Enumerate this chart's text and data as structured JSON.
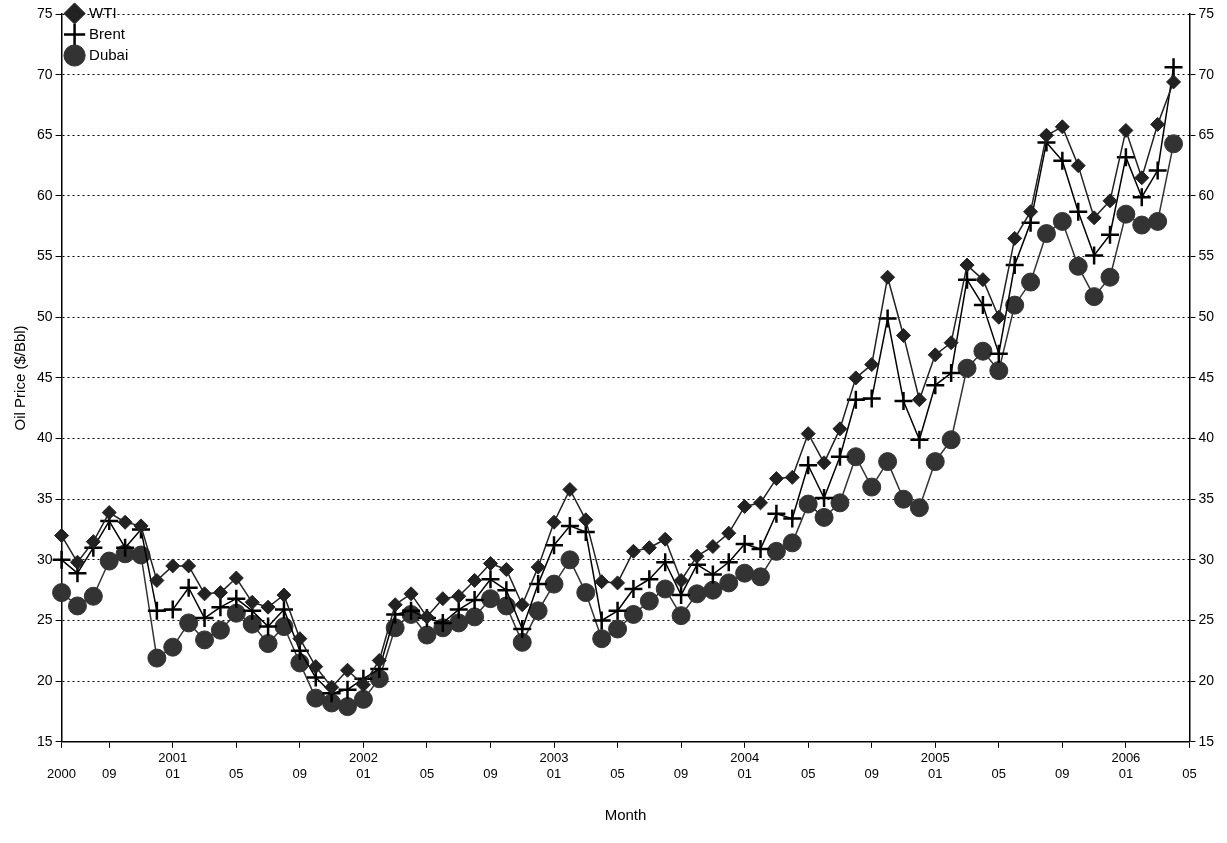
{
  "chart_data": {
    "type": "line",
    "xlabel": "Month",
    "ylabel": "Oil Price ($/Bbl)",
    "categories": [
      "2000",
      null,
      null,
      "09",
      null,
      null,
      null,
      "2001\n01",
      null,
      null,
      null,
      "05",
      null,
      null,
      null,
      "09",
      null,
      null,
      null,
      "2002\n01",
      null,
      null,
      null,
      "05",
      null,
      null,
      null,
      "09",
      null,
      null,
      null,
      "2003\n01",
      null,
      null,
      null,
      "05",
      null,
      null,
      null,
      "09",
      null,
      null,
      null,
      "2004\n01",
      null,
      null,
      null,
      "05",
      null,
      null,
      null,
      "09",
      null,
      null,
      null,
      "2005\n01",
      null,
      null,
      null,
      "05",
      null,
      null,
      null,
      "09",
      null,
      null,
      null,
      "2006\n01",
      null,
      null,
      null,
      "05"
    ],
    "series": [
      {
        "name": "WTI",
        "color": "#222222",
        "marker": "diamond",
        "values": [
          32.0,
          29.8,
          31.5,
          33.9,
          33.1,
          32.8,
          28.3,
          29.5,
          29.5,
          27.2,
          27.3,
          28.5,
          26.5,
          26.1,
          27.1,
          23.5,
          21.2,
          19.5,
          20.9,
          19.7,
          21.7,
          26.3,
          27.2,
          25.3,
          26.8,
          27.0,
          28.3,
          29.7,
          29.2,
          26.3,
          29.4,
          33.1,
          35.8,
          33.3,
          28.2,
          28.1,
          30.7,
          31.0,
          31.7,
          28.3,
          30.3,
          31.1,
          32.2,
          34.4,
          34.7,
          36.7,
          36.8,
          40.4,
          38.0,
          40.8,
          45.0,
          46.1,
          53.3,
          48.5,
          43.2,
          46.9,
          47.9,
          54.3,
          53.1,
          50.0,
          56.5,
          58.7,
          65.0,
          65.7,
          62.5,
          58.2,
          59.6,
          65.4,
          61.5,
          65.9,
          69.4,
          null
        ]
      },
      {
        "name": "Brent",
        "color": "#000000",
        "marker": "cross",
        "values": [
          30.0,
          28.9,
          31.0,
          33.2,
          31.0,
          32.5,
          25.8,
          25.9,
          27.7,
          25.2,
          26.1,
          26.8,
          25.8,
          24.5,
          25.9,
          22.5,
          20.3,
          19.0,
          19.3,
          20.2,
          21.0,
          25.5,
          25.8,
          25.2,
          24.8,
          25.9,
          26.7,
          28.4,
          27.5,
          24.3,
          28.0,
          31.2,
          32.8,
          32.3,
          25.0,
          25.8,
          27.6,
          28.4,
          29.8,
          27.1,
          29.6,
          28.8,
          29.8,
          31.3,
          30.9,
          33.8,
          33.4,
          37.8,
          35.1,
          38.5,
          43.2,
          43.3,
          49.9,
          43.1,
          39.9,
          44.4,
          45.4,
          53.1,
          51.0,
          47.0,
          54.3,
          57.8,
          64.4,
          62.9,
          58.7,
          55.1,
          56.8,
          63.2,
          59.9,
          62.1,
          70.6,
          null
        ]
      },
      {
        "name": "Dubai",
        "color": "#333333",
        "marker": "circle",
        "values": [
          27.3,
          26.2,
          27.0,
          29.9,
          30.5,
          30.4,
          21.9,
          22.8,
          24.8,
          23.4,
          24.2,
          25.6,
          24.7,
          23.1,
          24.5,
          21.5,
          18.6,
          18.2,
          17.9,
          18.5,
          20.2,
          24.4,
          25.5,
          23.8,
          24.4,
          24.8,
          25.3,
          26.8,
          26.2,
          23.2,
          25.8,
          28.0,
          30.0,
          27.3,
          23.5,
          24.3,
          25.5,
          26.6,
          27.6,
          25.4,
          27.2,
          27.5,
          28.1,
          28.9,
          28.6,
          30.7,
          31.4,
          34.6,
          33.5,
          34.7,
          38.5,
          36.0,
          38.1,
          35.0,
          34.3,
          38.1,
          39.9,
          45.8,
          47.2,
          45.6,
          51.0,
          52.9,
          56.9,
          57.9,
          54.2,
          51.7,
          53.3,
          58.5,
          57.6,
          57.9,
          64.3,
          null
        ]
      }
    ],
    "ylim": [
      15,
      75
    ],
    "yticks": [
      15,
      20,
      25,
      30,
      35,
      40,
      45,
      50,
      55,
      60,
      65,
      70,
      75
    ],
    "y2lim": [
      15,
      75
    ],
    "y2ticks": [
      15,
      20,
      25,
      30,
      35,
      40,
      45,
      50,
      55,
      60,
      65,
      70,
      75
    ],
    "grid": "y",
    "legend": "top left",
    "line_style": "solid"
  }
}
